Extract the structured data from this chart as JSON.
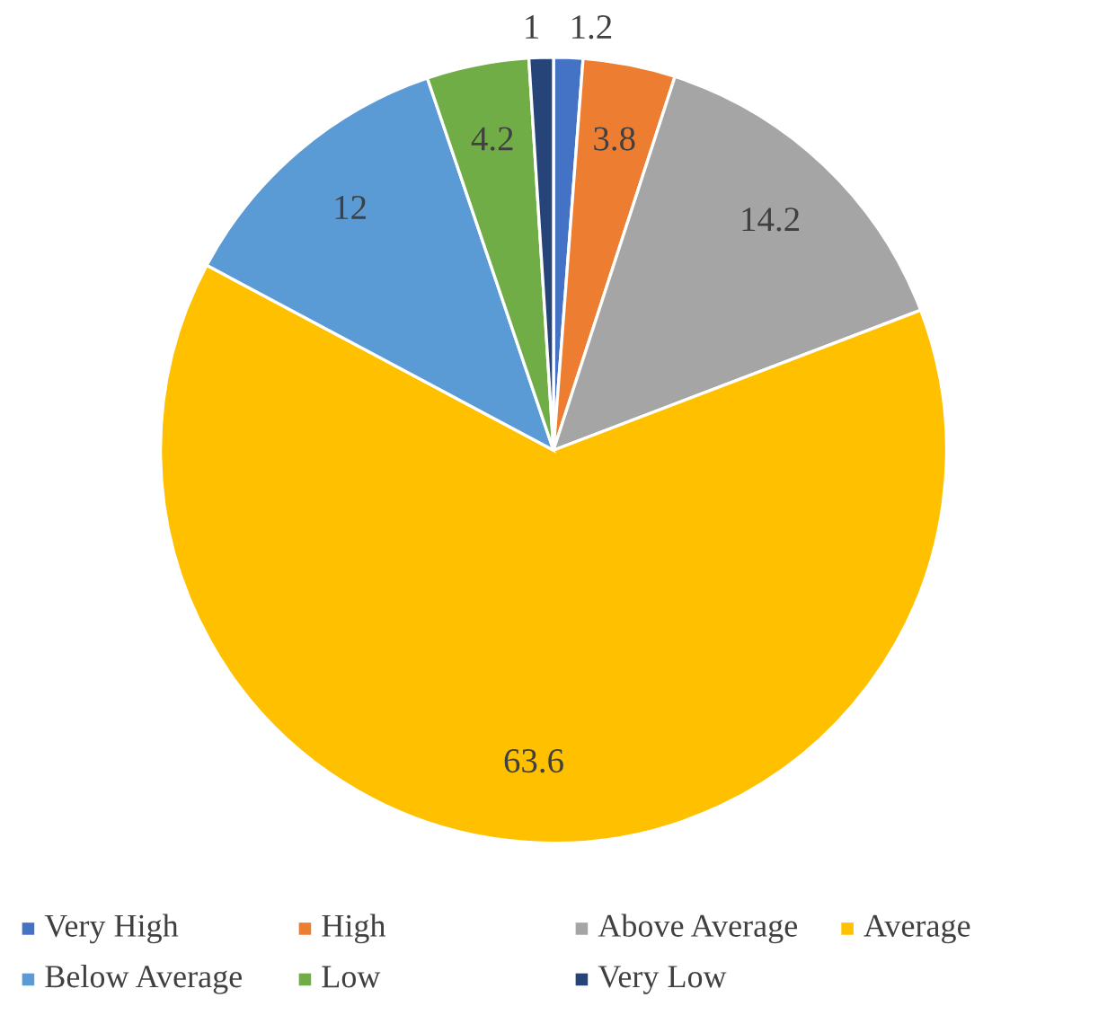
{
  "chart_data": {
    "type": "pie",
    "categories": [
      "Very High",
      "High",
      "Above Average",
      "Average",
      "Below Average",
      "Low",
      "Very Low"
    ],
    "values": [
      1.2,
      3.8,
      14.2,
      63.6,
      12,
      4.2,
      1
    ],
    "colors": [
      "#4472c4",
      "#ed7d31",
      "#a5a5a5",
      "#ffc000",
      "#5b9bd5",
      "#70ad47",
      "#264478"
    ],
    "data_labels": true,
    "legend": "bottom"
  }
}
